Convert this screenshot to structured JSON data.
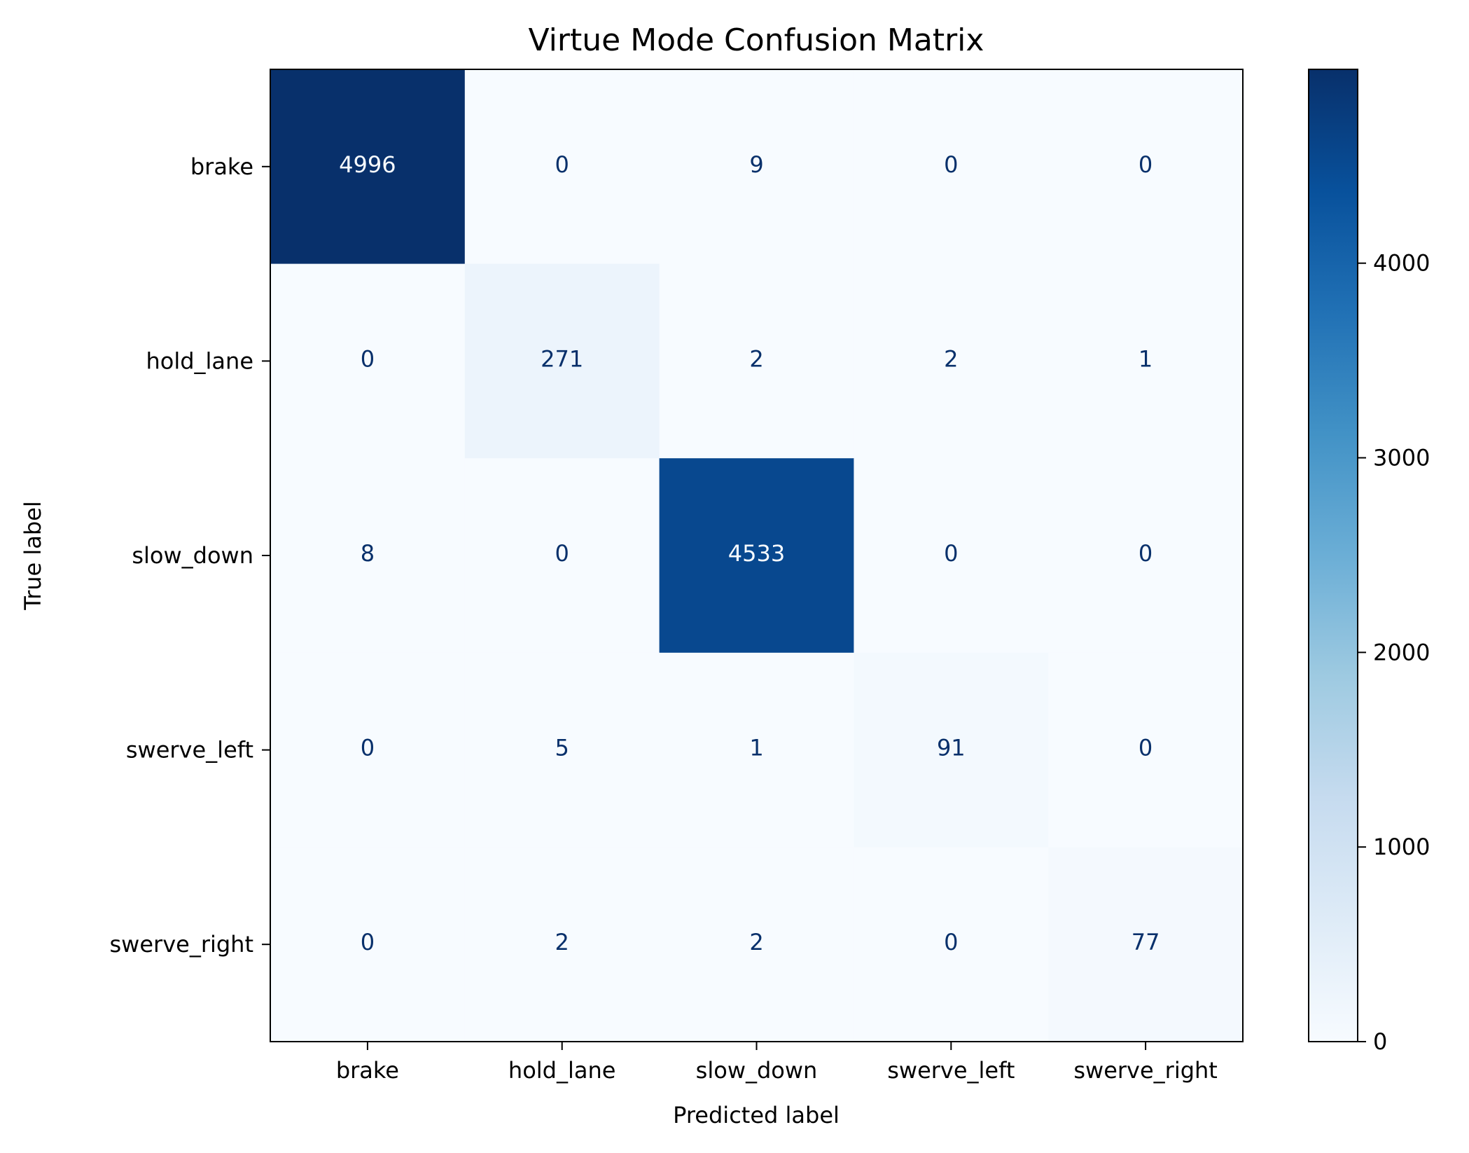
{
  "chart_data": {
    "type": "heatmap",
    "title": "Virtue Mode Confusion Matrix",
    "xlabel": "Predicted label",
    "ylabel": "True label",
    "x_categories": [
      "brake",
      "hold_lane",
      "slow_down",
      "swerve_left",
      "swerve_right"
    ],
    "y_categories": [
      "brake",
      "hold_lane",
      "slow_down",
      "swerve_left",
      "swerve_right"
    ],
    "matrix": [
      [
        4996,
        0,
        9,
        0,
        0
      ],
      [
        0,
        271,
        2,
        2,
        1
      ],
      [
        8,
        0,
        4533,
        0,
        0
      ],
      [
        0,
        5,
        1,
        91,
        0
      ],
      [
        0,
        2,
        2,
        0,
        77
      ]
    ],
    "colormap": "Blues",
    "colorbar": {
      "vmin": 0,
      "vmax": 4996,
      "ticks": [
        0,
        1000,
        2000,
        3000,
        4000
      ],
      "tick_labels": [
        "0",
        "1000",
        "2000",
        "3000",
        "4000"
      ]
    },
    "colors": {
      "text_dark": "#08306b",
      "text_light": "#f7fbff"
    }
  }
}
